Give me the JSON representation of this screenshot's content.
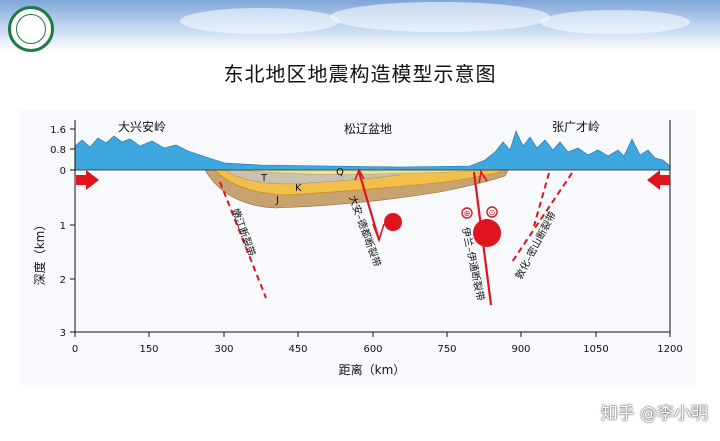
{
  "header": {
    "logo_icon": "university-seal-icon",
    "accent_color": "#1f7a45"
  },
  "title": "东北地区地震构造模型示意图",
  "watermark": "知乎 @李小明",
  "chart_data": {
    "type": "diagram",
    "x_axis": {
      "label": "距离（km）",
      "range": [
        0,
        1200
      ],
      "ticks": [
        "0",
        "150",
        "300",
        "450",
        "600",
        "750",
        "900",
        "1050",
        "1200"
      ]
    },
    "y_axis": {
      "label": "深度（km）",
      "elevation_ticks": [
        "1.6",
        "0.8",
        "0"
      ],
      "depth_ticks": [
        "1",
        "2",
        "3"
      ]
    },
    "regions": [
      "大兴安岭",
      "松辽盆地",
      "张广才岭"
    ],
    "strata_labels": [
      "T",
      "Q",
      "K",
      "J"
    ],
    "faults": [
      "嫩江断裂带",
      "大安–德都断裂带",
      "伊兰–伊通断裂带",
      "敦化–密山断裂带"
    ],
    "symbols": [
      "⊕",
      "⊙"
    ],
    "colors": {
      "topography": "#3fa7df",
      "layer_Q": "#e9e29a",
      "layer_T": "#c9c2b0",
      "layer_K": "#f2c04a",
      "layer_J": "#c8a26f",
      "fault": "#e0141e",
      "compression_arrow": "#e0141e"
    }
  }
}
